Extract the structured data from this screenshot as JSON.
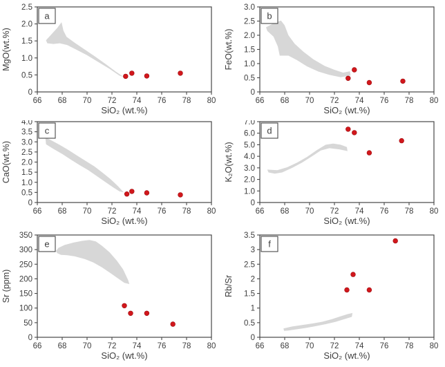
{
  "figure": {
    "background": "#ffffff",
    "point_color": "#d1171c",
    "point_edge_color": "#9e0b0e",
    "field_color": "#d7d7d7",
    "axis_color": "#474747",
    "text_color": "#3d3d3d"
  },
  "chart_data": [
    {
      "panel": "a",
      "type": "scatter",
      "xlabel": "SiO₂ (wt.%)",
      "ylabel": "MgO(wt.%)",
      "xlim": [
        66,
        80
      ],
      "xticks": [
        66,
        68,
        70,
        72,
        74,
        76,
        78,
        80
      ],
      "ylim": [
        0,
        2.5
      ],
      "yticks": [
        0,
        0.5,
        1.0,
        1.5,
        2.0,
        2.5
      ],
      "ytick_labels": [
        "0",
        "0.5",
        "1.0",
        "1.5",
        "2.0",
        "2.5"
      ],
      "grid": false,
      "legend": "none",
      "points": [
        [
          73.1,
          0.46
        ],
        [
          73.6,
          0.55
        ],
        [
          74.8,
          0.47
        ],
        [
          77.5,
          0.55
        ]
      ],
      "field": [
        [
          66.7,
          1.52
        ],
        [
          67.2,
          1.72
        ],
        [
          67.6,
          1.88
        ],
        [
          67.95,
          2.05
        ],
        [
          68.1,
          1.8
        ],
        [
          68.35,
          1.62
        ],
        [
          69.0,
          1.45
        ],
        [
          69.8,
          1.25
        ],
        [
          70.6,
          1.05
        ],
        [
          71.5,
          0.82
        ],
        [
          72.3,
          0.6
        ],
        [
          72.95,
          0.44
        ],
        [
          72.6,
          0.48
        ],
        [
          71.8,
          0.68
        ],
        [
          70.9,
          0.88
        ],
        [
          70.0,
          1.08
        ],
        [
          69.1,
          1.25
        ],
        [
          68.4,
          1.38
        ],
        [
          67.8,
          1.43
        ],
        [
          67.3,
          1.41
        ],
        [
          66.8,
          1.43
        ]
      ]
    },
    {
      "panel": "b",
      "type": "scatter",
      "xlabel": "SiO₂ (wt.%)",
      "ylabel": "FeO(wt.%)",
      "xlim": [
        66,
        80
      ],
      "xticks": [
        66,
        68,
        70,
        72,
        74,
        76,
        78,
        80
      ],
      "ylim": [
        0,
        3.0
      ],
      "yticks": [
        0,
        0.5,
        1.0,
        1.5,
        2.0,
        2.5,
        3.0
      ],
      "ytick_labels": [
        "0",
        "0.5",
        "1.0",
        "1.5",
        "2.0",
        "2.5",
        "3.0"
      ],
      "grid": false,
      "legend": "none",
      "points": [
        [
          73.1,
          0.48
        ],
        [
          73.6,
          0.78
        ],
        [
          74.8,
          0.33
        ],
        [
          77.5,
          0.38
        ]
      ],
      "field": [
        [
          66.5,
          2.28
        ],
        [
          67.1,
          2.42
        ],
        [
          67.7,
          2.52
        ],
        [
          68.0,
          2.35
        ],
        [
          68.3,
          2.0
        ],
        [
          68.8,
          1.7
        ],
        [
          69.5,
          1.42
        ],
        [
          70.3,
          1.15
        ],
        [
          71.2,
          0.92
        ],
        [
          72.0,
          0.78
        ],
        [
          72.7,
          0.68
        ],
        [
          73.25,
          0.73
        ],
        [
          73.3,
          0.58
        ],
        [
          72.5,
          0.52
        ],
        [
          71.6,
          0.6
        ],
        [
          70.7,
          0.72
        ],
        [
          69.8,
          0.9
        ],
        [
          69.0,
          1.12
        ],
        [
          68.3,
          1.28
        ],
        [
          67.6,
          1.28
        ],
        [
          67.45,
          1.6
        ],
        [
          67.1,
          1.95
        ],
        [
          66.6,
          2.15
        ]
      ]
    },
    {
      "panel": "c",
      "type": "scatter",
      "xlabel": "SiO₂ (wt.%)",
      "ylabel": "CaO(wt.%)",
      "xlim": [
        66,
        80
      ],
      "xticks": [
        66,
        68,
        70,
        72,
        74,
        76,
        78,
        80
      ],
      "ylim": [
        0,
        4.0
      ],
      "yticks": [
        0,
        0.5,
        1.0,
        1.5,
        2.0,
        2.5,
        3.0,
        3.5,
        4.0
      ],
      "ytick_labels": [
        "0",
        "0.5",
        "1.0",
        "1.5",
        "2.0",
        "2.5",
        "3.0",
        "3.5",
        "4.0"
      ],
      "grid": false,
      "legend": "none",
      "points": [
        [
          73.2,
          0.42
        ],
        [
          73.6,
          0.55
        ],
        [
          74.8,
          0.48
        ],
        [
          77.5,
          0.38
        ]
      ],
      "field": [
        [
          66.65,
          3.22
        ],
        [
          67.2,
          3.05
        ],
        [
          67.8,
          2.85
        ],
        [
          68.5,
          2.6
        ],
        [
          69.2,
          2.32
        ],
        [
          69.9,
          2.05
        ],
        [
          70.6,
          1.78
        ],
        [
          71.3,
          1.45
        ],
        [
          71.9,
          1.15
        ],
        [
          72.5,
          0.8
        ],
        [
          72.95,
          0.5
        ],
        [
          72.6,
          0.55
        ],
        [
          72.1,
          0.75
        ],
        [
          71.5,
          1.0
        ],
        [
          70.8,
          1.3
        ],
        [
          70.1,
          1.6
        ],
        [
          69.4,
          1.85
        ],
        [
          68.7,
          2.12
        ],
        [
          68.0,
          2.4
        ],
        [
          67.3,
          2.65
        ],
        [
          66.7,
          2.88
        ]
      ]
    },
    {
      "panel": "d",
      "type": "scatter",
      "xlabel": "SiO₂ (wt.%)",
      "ylabel": "K₂O(wt.%)",
      "xlim": [
        66,
        80
      ],
      "xticks": [
        66,
        68,
        70,
        72,
        74,
        76,
        78,
        80
      ],
      "ylim": [
        0,
        7.0
      ],
      "yticks": [
        0,
        1.0,
        2.0,
        3.0,
        4.0,
        5.0,
        6.0,
        7.0
      ],
      "ytick_labels": [
        "0",
        "1.0",
        "2.0",
        "3.0",
        "4.0",
        "5.0",
        "6.0",
        "7.0"
      ],
      "grid": false,
      "legend": "none",
      "points": [
        [
          73.1,
          6.35
        ],
        [
          73.6,
          6.05
        ],
        [
          74.8,
          4.3
        ],
        [
          77.4,
          5.35
        ]
      ],
      "field": [
        [
          66.6,
          2.85
        ],
        [
          67.4,
          2.8
        ],
        [
          68.2,
          3.05
        ],
        [
          69.0,
          3.45
        ],
        [
          69.8,
          3.95
        ],
        [
          70.6,
          4.55
        ],
        [
          71.3,
          5.0
        ],
        [
          71.9,
          5.1
        ],
        [
          72.5,
          5.0
        ],
        [
          73.0,
          4.8
        ],
        [
          73.05,
          4.45
        ],
        [
          72.4,
          4.6
        ],
        [
          71.6,
          4.7
        ],
        [
          70.9,
          4.5
        ],
        [
          70.2,
          4.0
        ],
        [
          69.4,
          3.45
        ],
        [
          68.6,
          3.0
        ],
        [
          67.8,
          2.6
        ],
        [
          67.2,
          2.5
        ],
        [
          66.7,
          2.6
        ]
      ]
    },
    {
      "panel": "e",
      "type": "scatter",
      "xlabel": "SiO₂ (wt.%)",
      "ylabel": "Sr (ppm)",
      "xlim": [
        66,
        80
      ],
      "xticks": [
        66,
        68,
        70,
        72,
        74,
        76,
        78,
        80
      ],
      "ylim": [
        0,
        350
      ],
      "yticks": [
        0,
        50,
        100,
        150,
        200,
        250,
        300,
        350
      ],
      "ytick_labels": [
        "0",
        "50",
        "100",
        "150",
        "200",
        "250",
        "300",
        "350"
      ],
      "grid": false,
      "legend": "none",
      "points": [
        [
          73.0,
          108
        ],
        [
          73.5,
          82
        ],
        [
          74.8,
          82
        ],
        [
          76.9,
          45
        ]
      ],
      "field": [
        [
          67.5,
          295
        ],
        [
          67.7,
          306
        ],
        [
          68.2,
          316
        ],
        [
          68.9,
          324
        ],
        [
          69.6,
          330
        ],
        [
          70.2,
          333
        ],
        [
          70.7,
          328
        ],
        [
          71.2,
          313
        ],
        [
          71.8,
          291
        ],
        [
          72.4,
          262
        ],
        [
          72.9,
          232
        ],
        [
          73.3,
          196
        ],
        [
          73.4,
          182
        ],
        [
          73.0,
          186
        ],
        [
          72.5,
          201
        ],
        [
          71.9,
          219
        ],
        [
          71.2,
          239
        ],
        [
          70.5,
          256
        ],
        [
          69.8,
          268
        ],
        [
          69.0,
          277
        ],
        [
          68.4,
          281
        ],
        [
          67.9,
          282
        ],
        [
          67.6,
          288
        ]
      ]
    },
    {
      "panel": "f",
      "type": "scatter",
      "xlabel": "SiO₂ (wt.%)",
      "ylabel": "Rb/Sr",
      "xlim": [
        66,
        80
      ],
      "xticks": [
        66,
        68,
        70,
        72,
        74,
        76,
        78,
        80
      ],
      "ylim": [
        0,
        3.5
      ],
      "yticks": [
        0,
        0.5,
        1,
        1.5,
        2,
        2.5,
        3,
        3.5
      ],
      "ytick_labels": [
        "0",
        "0.5",
        "1",
        "1.5",
        "2",
        "2.5",
        "3",
        "3.5"
      ],
      "grid": false,
      "legend": "none",
      "points": [
        [
          73.0,
          1.62
        ],
        [
          73.5,
          2.15
        ],
        [
          74.8,
          1.62
        ],
        [
          76.9,
          3.3
        ]
      ],
      "field": [
        [
          67.9,
          0.3
        ],
        [
          68.6,
          0.37
        ],
        [
          69.4,
          0.42
        ],
        [
          70.2,
          0.47
        ],
        [
          71.0,
          0.53
        ],
        [
          71.8,
          0.62
        ],
        [
          72.5,
          0.72
        ],
        [
          73.1,
          0.8
        ],
        [
          73.45,
          0.83
        ],
        [
          73.4,
          0.7
        ],
        [
          72.8,
          0.62
        ],
        [
          72.1,
          0.53
        ],
        [
          71.3,
          0.45
        ],
        [
          70.5,
          0.38
        ],
        [
          69.7,
          0.32
        ],
        [
          68.9,
          0.27
        ],
        [
          68.3,
          0.23
        ],
        [
          67.95,
          0.22
        ]
      ]
    }
  ]
}
